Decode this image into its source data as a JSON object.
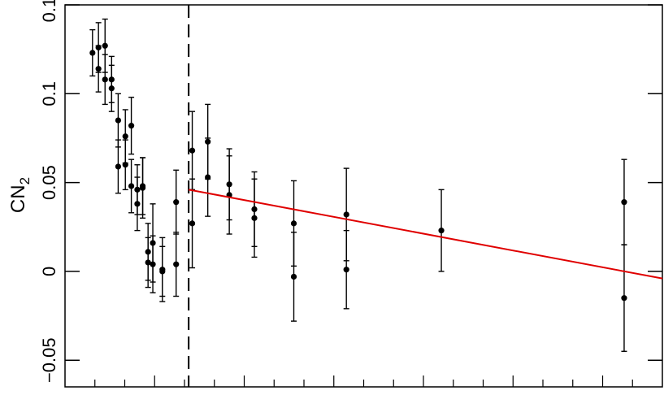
{
  "chart_data": {
    "type": "scatter",
    "title": "",
    "xlabel": "",
    "ylabel": "CN",
    "ylabel_subscript": "2",
    "xlim": [
      0,
      1
    ],
    "ylim": [
      -0.065,
      0.15
    ],
    "y_ticks": [
      -0.05,
      0,
      0.05,
      0.1,
      0.15
    ],
    "y_tick_labels": [
      "−0.05",
      "0",
      "0.05",
      "0.1",
      "0.15"
    ],
    "x_minor_tick_count": 19,
    "grid": false,
    "legend": "none",
    "colors": {
      "points": "#000000",
      "fit_line": "#e00000",
      "marker_line": "#000000"
    },
    "vertical_marker_x": 0.207,
    "points": [
      {
        "x": 0.046,
        "y": 0.123,
        "err": 0.013
      },
      {
        "x": 0.056,
        "y": 0.126,
        "err": 0.014
      },
      {
        "x": 0.056,
        "y": 0.114,
        "err": 0.013
      },
      {
        "x": 0.067,
        "y": 0.127,
        "err": 0.015
      },
      {
        "x": 0.067,
        "y": 0.108,
        "err": 0.014
      },
      {
        "x": 0.078,
        "y": 0.108,
        "err": 0.013
      },
      {
        "x": 0.078,
        "y": 0.103,
        "err": 0.013
      },
      {
        "x": 0.089,
        "y": 0.085,
        "err": 0.015
      },
      {
        "x": 0.089,
        "y": 0.059,
        "err": 0.015
      },
      {
        "x": 0.101,
        "y": 0.076,
        "err": 0.015
      },
      {
        "x": 0.101,
        "y": 0.06,
        "err": 0.014
      },
      {
        "x": 0.111,
        "y": 0.082,
        "err": 0.016
      },
      {
        "x": 0.111,
        "y": 0.048,
        "err": 0.015
      },
      {
        "x": 0.121,
        "y": 0.046,
        "err": 0.014
      },
      {
        "x": 0.121,
        "y": 0.038,
        "err": 0.015
      },
      {
        "x": 0.13,
        "y": 0.048,
        "err": 0.016
      },
      {
        "x": 0.13,
        "y": 0.047,
        "err": 0.017
      },
      {
        "x": 0.139,
        "y": 0.011,
        "err": 0.016
      },
      {
        "x": 0.139,
        "y": 0.005,
        "err": 0.014
      },
      {
        "x": 0.147,
        "y": 0.016,
        "err": 0.022
      },
      {
        "x": 0.147,
        "y": 0.004,
        "err": 0.016
      },
      {
        "x": 0.163,
        "y": 0.001,
        "err": 0.018
      },
      {
        "x": 0.163,
        "y": 0.0,
        "err": 0.014
      },
      {
        "x": 0.186,
        "y": 0.039,
        "err": 0.018
      },
      {
        "x": 0.186,
        "y": 0.004,
        "err": 0.018
      },
      {
        "x": 0.213,
        "y": 0.068,
        "err": 0.022
      },
      {
        "x": 0.213,
        "y": 0.027,
        "err": 0.025
      },
      {
        "x": 0.239,
        "y": 0.073,
        "err": 0.021
      },
      {
        "x": 0.239,
        "y": 0.053,
        "err": 0.022
      },
      {
        "x": 0.275,
        "y": 0.049,
        "err": 0.02
      },
      {
        "x": 0.275,
        "y": 0.043,
        "err": 0.022
      },
      {
        "x": 0.317,
        "y": 0.035,
        "err": 0.021
      },
      {
        "x": 0.317,
        "y": 0.03,
        "err": 0.022
      },
      {
        "x": 0.383,
        "y": 0.027,
        "err": 0.024
      },
      {
        "x": 0.383,
        "y": -0.003,
        "err": 0.025
      },
      {
        "x": 0.471,
        "y": 0.032,
        "err": 0.026
      },
      {
        "x": 0.471,
        "y": 0.001,
        "err": 0.022
      },
      {
        "x": 0.63,
        "y": 0.023,
        "err": 0.023
      },
      {
        "x": 0.936,
        "y": 0.039,
        "err": 0.024
      },
      {
        "x": 0.936,
        "y": -0.015,
        "err": 0.03
      }
    ],
    "fit_line": {
      "x": [
        0.207,
        1.0
      ],
      "y": [
        0.046,
        -0.004
      ]
    }
  }
}
